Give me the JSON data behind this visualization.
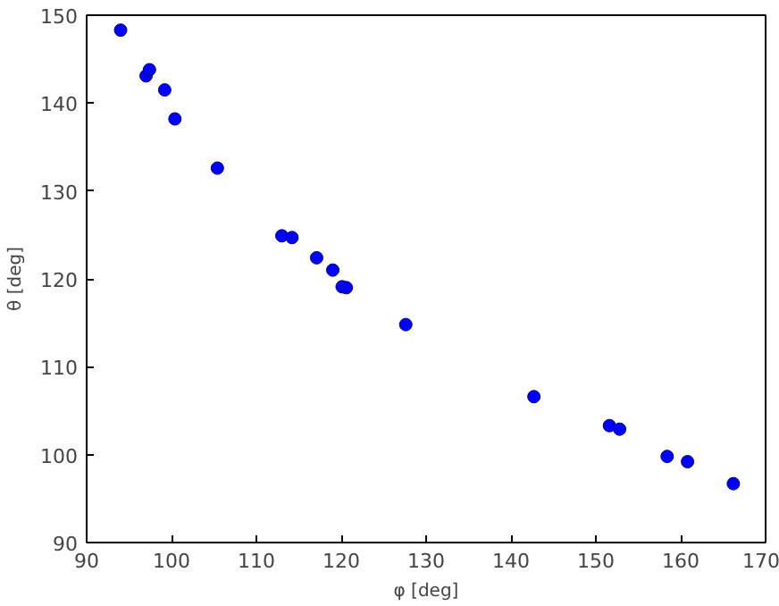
{
  "chart_data": {
    "type": "scatter",
    "xlabel": "φ [deg]",
    "ylabel": "θ [deg]",
    "xlim": [
      90,
      170
    ],
    "xticks": [
      90,
      100,
      110,
      120,
      130,
      140,
      150,
      160,
      170
    ],
    "ylim": [
      90,
      150
    ],
    "yticks": [
      90,
      100,
      110,
      120,
      130,
      140,
      150
    ],
    "grid": false,
    "marker": "circle",
    "series": [
      {
        "color": "#0000ff",
        "x": [
          94.0,
          97.0,
          97.4,
          99.2,
          100.4,
          105.4,
          113.0,
          114.2,
          117.1,
          119.0,
          120.1,
          120.6,
          127.6,
          142.7,
          151.6,
          152.8,
          158.4,
          160.8,
          166.2
        ],
        "values": [
          148.3,
          143.1,
          143.8,
          141.5,
          138.2,
          132.6,
          124.9,
          124.7,
          122.4,
          121.0,
          119.1,
          119.0,
          114.8,
          106.6,
          103.3,
          102.9,
          99.8,
          99.2,
          96.7
        ]
      }
    ]
  }
}
